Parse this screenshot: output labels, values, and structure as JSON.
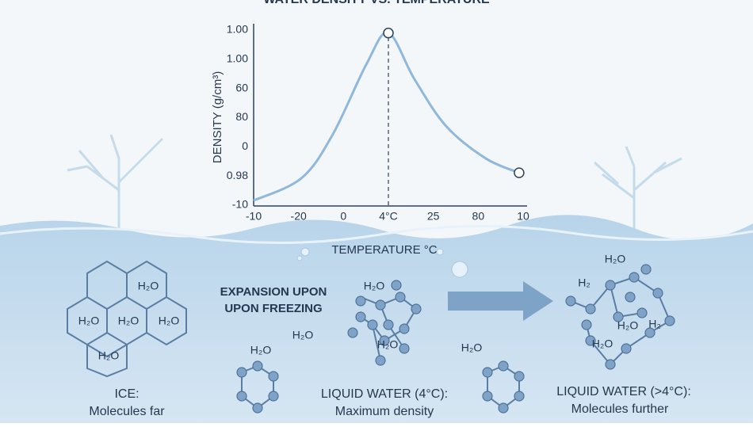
{
  "chart_data": {
    "type": "line",
    "title": "WATER DENSITY VS. TEMPERATURE",
    "x_label": "TEMPERATURE °C",
    "y_label": "DENSITY (g/cm³)",
    "categories": [
      "-10",
      "-20",
      "0",
      "4°C",
      "25",
      "80",
      "10"
    ],
    "y_categories": [
      "-10",
      "0.98",
      "0",
      "80",
      "60",
      "1.00",
      "1.00"
    ],
    "xlim": [
      0,
      6
    ],
    "ylim": [
      0,
      6
    ],
    "x": [
      0,
      1.06,
      1.76,
      2.52,
      3,
      3.58,
      4.29,
      5.17,
      5.91
    ],
    "values": [
      0.16,
      0.92,
      2.42,
      4.86,
      5.9,
      4.32,
      2.7,
      1.6,
      1.11
    ],
    "color": "#8fb8da",
    "markers": [
      4,
      8
    ],
    "vline_x": 3
  },
  "panels": {
    "ice_title": "ICE:",
    "ice_text": "Molecules far",
    "expansion_1": "EXPANSION UPON",
    "expansion_2": "UPON FREEZING",
    "liquid4_title": "LIQUID WATER (4°C):",
    "liquid4_text": "Maximum density",
    "liquidwarm_title": "LIQUID WATER (>4°C):",
    "liquidwarm_text": "Molecules further"
  },
  "molecule_labels": [
    "H₂O",
    "H₂O",
    "H₂O",
    "H₂O",
    "H₂O",
    "H₂O",
    "H₂O",
    "H₂O",
    "H₂O",
    "H₂O",
    "H₂O",
    "H₂",
    "H₂O",
    "H₂",
    "H₂O"
  ]
}
